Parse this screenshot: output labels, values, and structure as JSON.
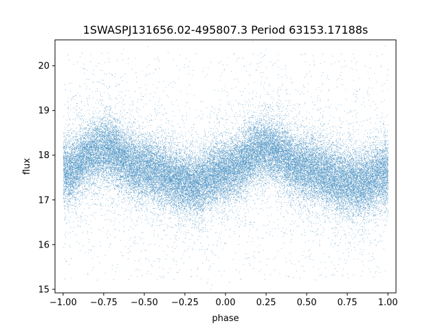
{
  "chart_data": {
    "type": "scatter",
    "title": "1SWASPJ131656.02-495807.3 Period 63153.17188s",
    "xlabel": "phase",
    "ylabel": "flux",
    "xlim": [
      -1.05,
      1.05
    ],
    "ylim": [
      14.92,
      20.58
    ],
    "x_ticks": [
      -1.0,
      -0.75,
      -0.5,
      -0.25,
      0.0,
      0.25,
      0.5,
      0.75,
      1.0
    ],
    "x_tick_labels": [
      "−1.00",
      "−0.75",
      "−0.50",
      "−0.25",
      "0.00",
      "0.25",
      "0.50",
      "0.75",
      "1.00"
    ],
    "y_ticks": [
      15,
      16,
      17,
      18,
      19,
      20
    ],
    "y_tick_labels": [
      "15",
      "16",
      "17",
      "18",
      "19",
      "20"
    ],
    "grid": false,
    "legend": "none",
    "marker_color": "#1f77b4",
    "series": [
      {
        "phase_range": [
          -1.0,
          1.0
        ],
        "mean_flux_profile": {
          "x": [
            -1.0,
            -0.75,
            -0.5,
            -0.25,
            -0.2,
            0.0,
            0.25,
            0.5,
            0.75,
            0.8,
            1.0
          ],
          "y": [
            17.65,
            18.15,
            17.7,
            17.4,
            17.35,
            17.65,
            18.15,
            17.7,
            17.4,
            17.35,
            17.6
          ]
        },
        "scatter_sd": 0.35,
        "outlier_range": [
          15.2,
          20.3
        ],
        "approx_points": 42000
      }
    ]
  }
}
